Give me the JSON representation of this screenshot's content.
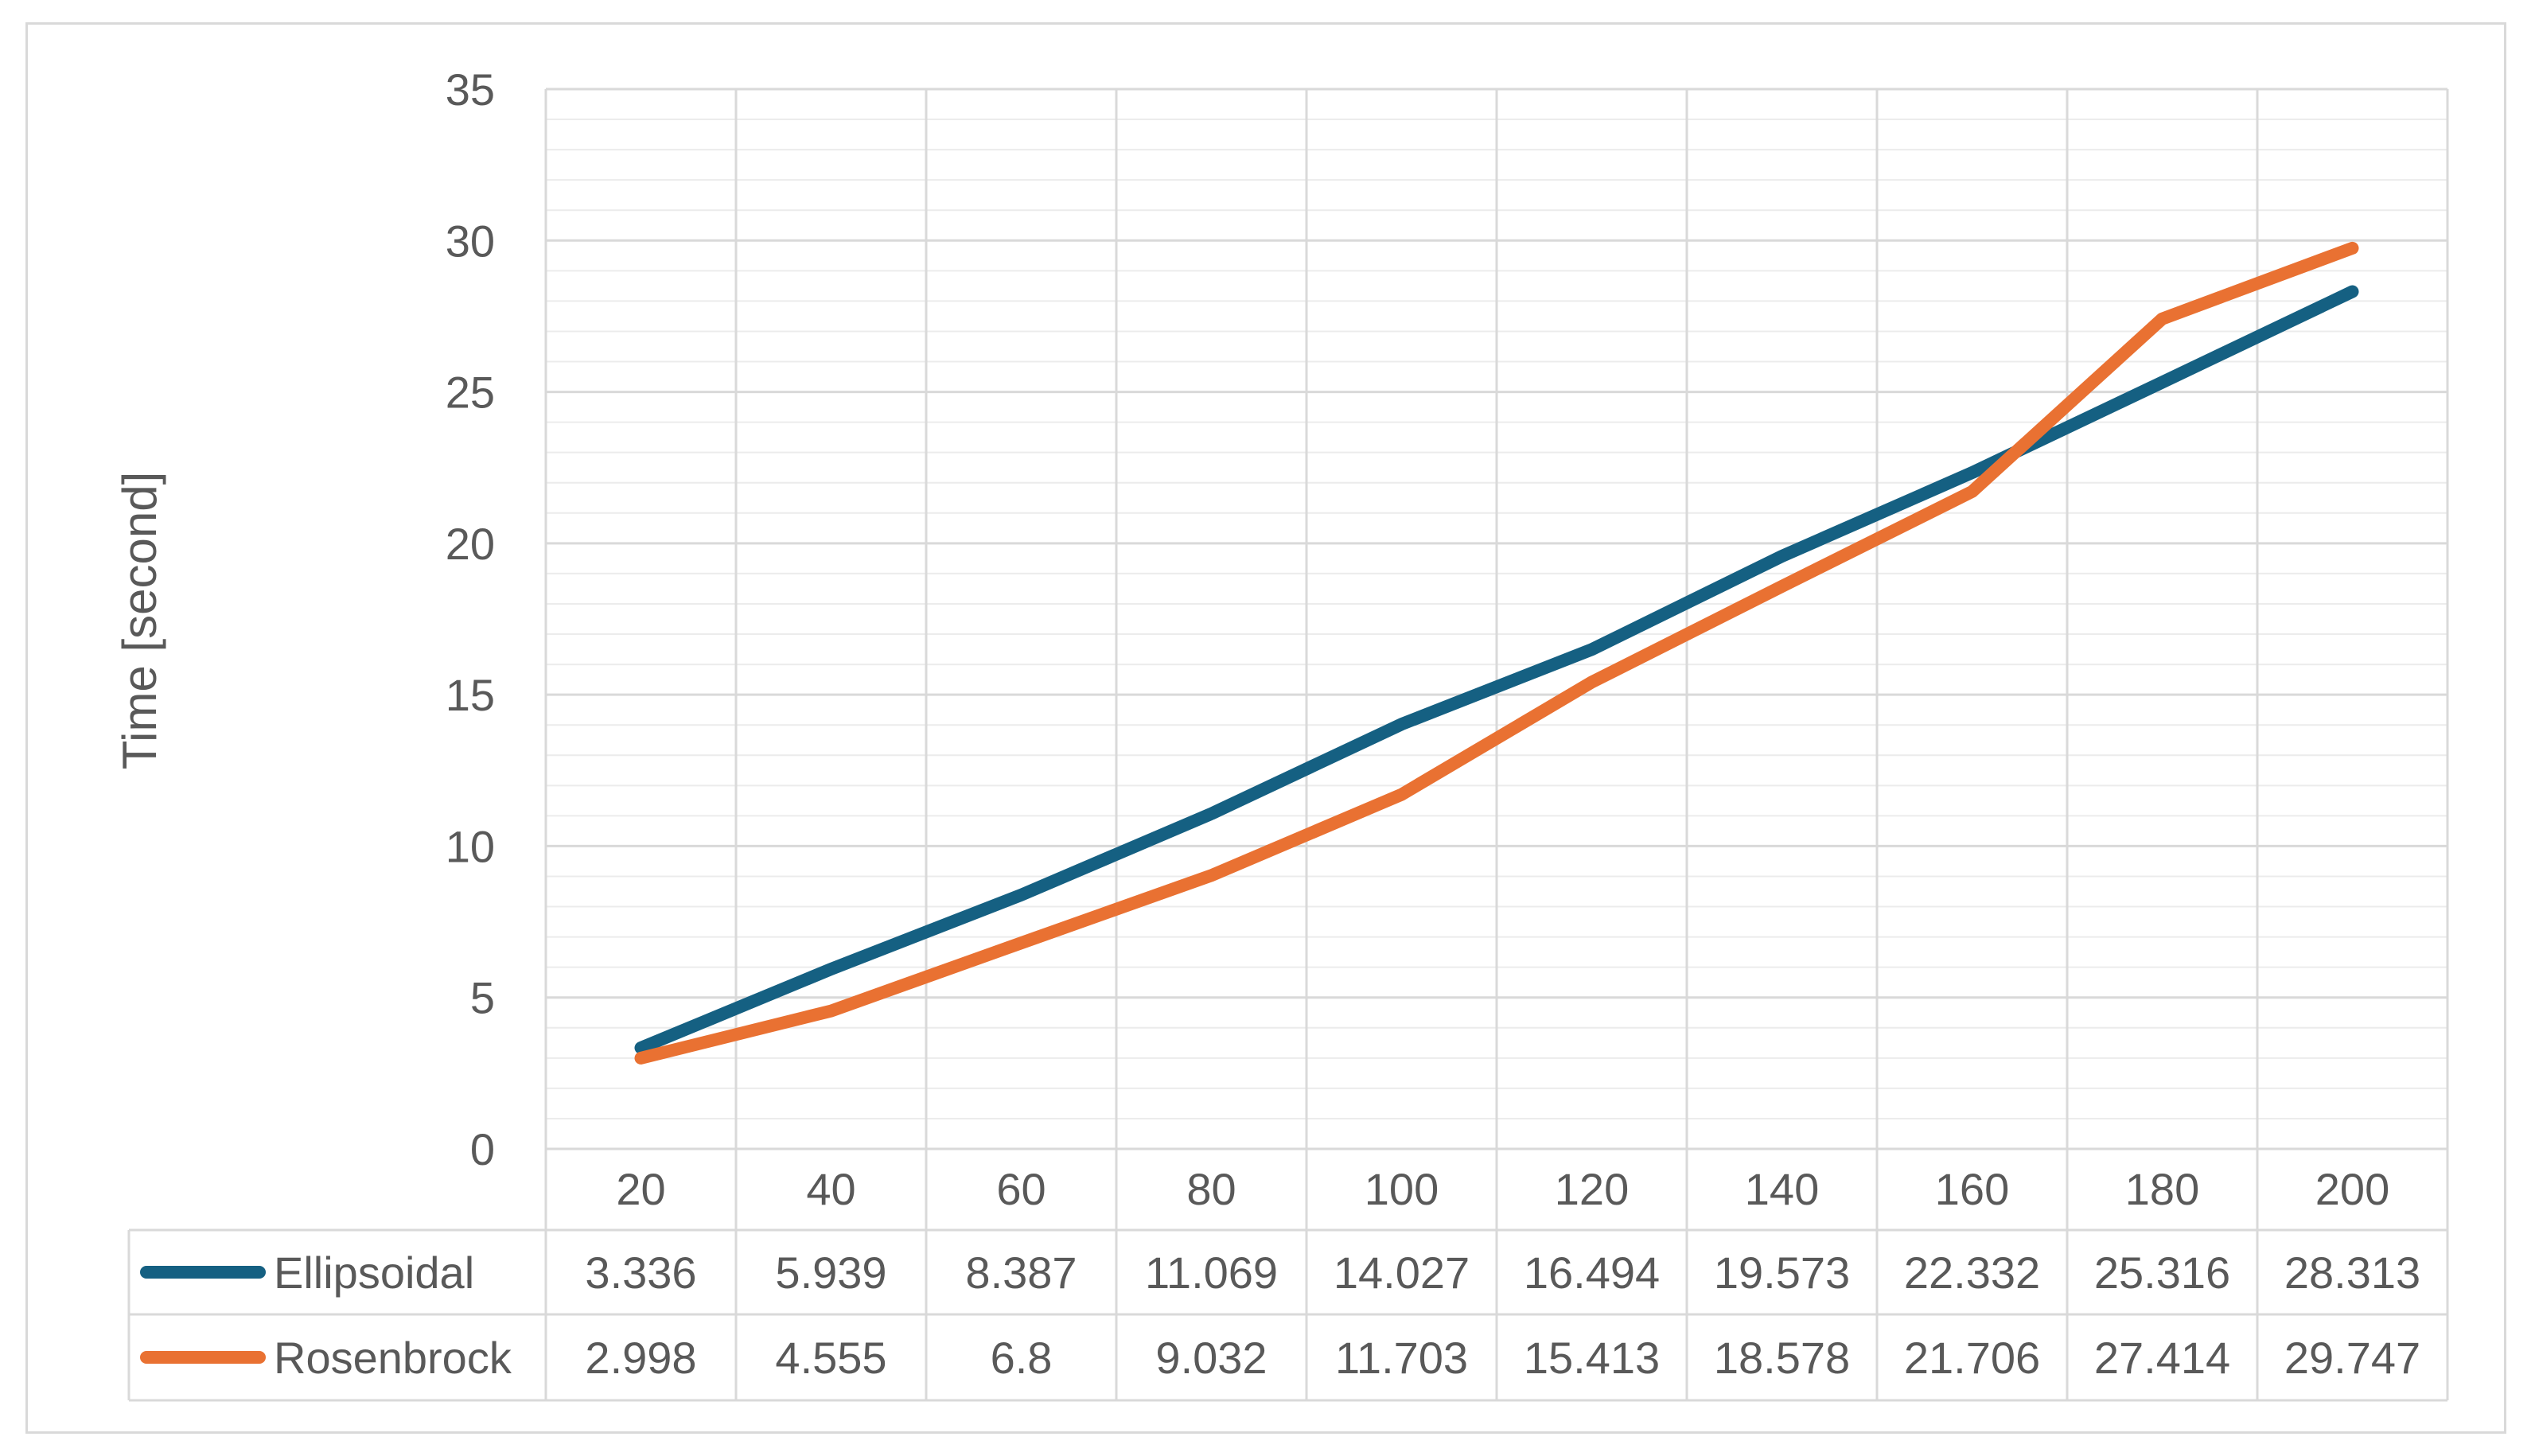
{
  "chart_data": {
    "type": "line",
    "ylabel": "Time [second]",
    "xlabel": "",
    "ylim": [
      0,
      35
    ],
    "yticks": [
      0,
      5,
      10,
      15,
      20,
      25,
      30,
      35
    ],
    "minor_grid_step": 1,
    "grid": true,
    "legend_placement": "data-table-below",
    "categories": [
      "20",
      "40",
      "60",
      "80",
      "100",
      "120",
      "140",
      "160",
      "180",
      "200"
    ],
    "series": [
      {
        "name": "Ellipsoidal",
        "color": "#156082",
        "values": [
          3.336,
          5.939,
          8.387,
          11.069,
          14.027,
          16.494,
          19.573,
          22.332,
          25.316,
          28.313
        ],
        "labels": [
          "3.336",
          "5.939",
          "8.387",
          "11.069",
          "14.027",
          "16.494",
          "19.573",
          "22.332",
          "25.316",
          "28.313"
        ]
      },
      {
        "name": "Rosenbrock",
        "color": "#E97132",
        "values": [
          2.998,
          4.555,
          6.8,
          9.032,
          11.703,
          15.413,
          18.578,
          21.706,
          27.414,
          29.747
        ],
        "labels": [
          "2.998",
          "4.555",
          "6.8",
          "9.032",
          "11.703",
          "15.413",
          "18.578",
          "21.706",
          "27.414",
          "29.747"
        ]
      }
    ]
  }
}
